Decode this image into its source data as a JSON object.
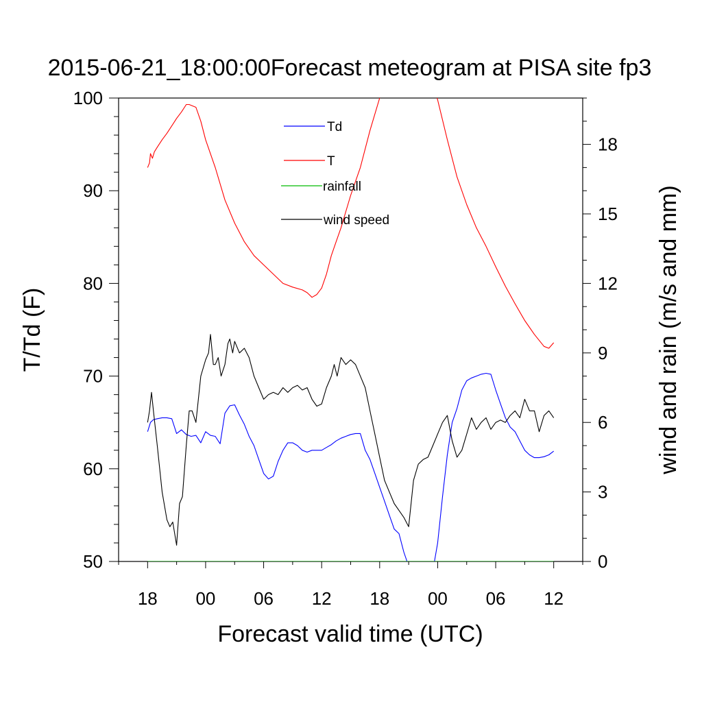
{
  "chart_data": {
    "type": "line",
    "title": "2015-06-21_18:00:00Forecast meteogram at PISA site fp3",
    "xlabel": "Forecast valid time (UTC)",
    "ylabel": "T/Td (F)",
    "ylabel_right": "wind and rain (m/s and mm)",
    "x_units": "hours since 2015-06-21 12:00 UTC",
    "xlim": [
      -3,
      45
    ],
    "ylim": [
      50,
      100
    ],
    "ylim_right": [
      0,
      20
    ],
    "x_ticks": [
      {
        "x": 0,
        "label": "18"
      },
      {
        "x": 6,
        "label": "00"
      },
      {
        "x": 12,
        "label": "06"
      },
      {
        "x": 18,
        "label": "12"
      },
      {
        "x": 24,
        "label": "18"
      },
      {
        "x": 30,
        "label": "00"
      },
      {
        "x": 36,
        "label": "06"
      },
      {
        "x": 42,
        "label": "12"
      }
    ],
    "y_ticks_left": [
      "100",
      "90",
      "80",
      "70",
      "60",
      "50"
    ],
    "y_ticks_right": [
      "18",
      "15",
      "12",
      "9",
      "6",
      "3",
      "0"
    ],
    "grid": false,
    "legend": "top-center",
    "series": [
      {
        "name": "Td",
        "axis": "left",
        "color": "#0000ff",
        "x": [
          0,
          0.3,
          0.6,
          1.0,
          1.5,
          2.0,
          2.5,
          3.0,
          3.5,
          4.0,
          4.5,
          5.0,
          5.5,
          6.0,
          6.5,
          7.0,
          7.5,
          8.0,
          8.5,
          9.0,
          9.5,
          10.0,
          10.5,
          11.0,
          11.5,
          12.0,
          12.5,
          13.0,
          13.5,
          14.0,
          14.5,
          15.0,
          15.5,
          16.0,
          16.5,
          17.0,
          17.5,
          18.0,
          18.5,
          19.0,
          19.5,
          20.0,
          20.5,
          21.0,
          21.5,
          22.0,
          22.5,
          23.0,
          23.5,
          24.0,
          24.5,
          25.0,
          25.5,
          26.0,
          26.5,
          27.0,
          27.5,
          27.8,
          29.5,
          30.0,
          30.5,
          31.0,
          31.5,
          32.0,
          32.5,
          33.0,
          33.5,
          34.0,
          34.5,
          35.0,
          35.5,
          36.0,
          36.5,
          37.0,
          37.5,
          38.0,
          38.5,
          39.0,
          39.5,
          40.0,
          40.5,
          41.0,
          41.5,
          42.0
        ],
        "y": [
          64.0,
          65.0,
          65.3,
          65.4,
          65.5,
          65.5,
          65.4,
          63.8,
          64.2,
          63.7,
          63.5,
          63.6,
          62.8,
          64.0,
          63.6,
          63.5,
          62.7,
          66.0,
          66.8,
          66.9,
          65.8,
          64.8,
          63.5,
          62.5,
          61.0,
          59.5,
          58.9,
          59.2,
          60.8,
          62.0,
          62.8,
          62.8,
          62.5,
          62.0,
          61.8,
          62.0,
          62.0,
          62.0,
          62.3,
          62.6,
          63.0,
          63.3,
          63.5,
          63.7,
          63.8,
          63.8,
          62.0,
          61.0,
          59.5,
          58.0,
          56.5,
          55.0,
          53.5,
          53.0,
          51.0,
          49.5,
          49.3,
          49.0,
          49.0,
          52.0,
          57.0,
          61.5,
          65.0,
          66.5,
          68.5,
          69.5,
          69.8,
          70.0,
          70.2,
          70.3,
          70.2,
          68.5,
          67.0,
          65.5,
          64.5,
          64.0,
          63.0,
          62.0,
          61.5,
          61.2,
          61.2,
          61.3,
          61.5,
          61.9
        ]
      },
      {
        "name": "T",
        "axis": "left",
        "color": "#ff0000",
        "x": [
          0,
          0.2,
          0.3,
          0.5,
          0.7,
          1.0,
          1.5,
          2.0,
          2.5,
          3.0,
          3.5,
          4.0,
          4.3,
          5.0,
          5.5,
          6.0,
          7.0,
          8.0,
          9.0,
          10.0,
          11.0,
          12.0,
          13.0,
          14.0,
          15.0,
          16.0,
          16.5,
          17.0,
          17.5,
          18.0,
          18.5,
          19.0,
          19.5,
          20.0,
          21.0,
          22.0,
          23.0,
          24.0,
          24.3,
          24.6,
          29.8,
          30.0,
          31.0,
          32.0,
          33.0,
          34.0,
          35.0,
          36.0,
          37.0,
          38.0,
          39.0,
          40.0,
          41.0,
          41.5,
          42.0
        ],
        "y": [
          92.5,
          93.0,
          94.0,
          93.5,
          94.2,
          94.7,
          95.5,
          96.2,
          97.0,
          97.8,
          98.5,
          99.3,
          99.3,
          99.0,
          97.5,
          95.5,
          92.5,
          89.0,
          86.5,
          84.5,
          83.0,
          82.0,
          81.0,
          80.0,
          79.6,
          79.3,
          79.0,
          78.5,
          78.8,
          79.5,
          81.0,
          83.0,
          84.5,
          86.0,
          89.5,
          92.5,
          96.5,
          100.0,
          100.2,
          100.4,
          100.4,
          99.8,
          95.5,
          91.5,
          88.5,
          86.0,
          84.0,
          81.8,
          79.7,
          77.8,
          76.0,
          74.5,
          73.2,
          73.0,
          73.6
        ]
      },
      {
        "name": "rainfall",
        "axis": "right",
        "color": "#00bb00",
        "x": [
          0,
          42
        ],
        "y": [
          0,
          0
        ]
      },
      {
        "name": "wind speed",
        "axis": "right",
        "color": "#000000",
        "x": [
          0,
          0.2,
          0.4,
          0.6,
          1.0,
          1.5,
          2.0,
          2.3,
          2.6,
          3.0,
          3.3,
          3.6,
          4.0,
          4.3,
          4.6,
          5.0,
          5.5,
          6.0,
          6.3,
          6.5,
          6.8,
          7.0,
          7.3,
          7.6,
          8.0,
          8.3,
          8.5,
          8.8,
          9.0,
          9.5,
          10.0,
          10.5,
          11.0,
          11.5,
          12.0,
          12.5,
          13.0,
          13.5,
          14.0,
          14.5,
          15.0,
          15.5,
          16.0,
          16.5,
          17.0,
          17.5,
          18.0,
          18.5,
          19.0,
          19.3,
          19.6,
          20.0,
          20.5,
          21.0,
          21.5,
          22.0,
          22.5,
          23.0,
          23.5,
          24.0,
          24.5,
          25.0,
          25.5,
          26.0,
          26.5,
          27.0,
          27.5,
          28.0,
          28.5,
          29.0,
          29.5,
          30.0,
          30.5,
          31.0,
          31.5,
          32.0,
          32.5,
          33.0,
          33.5,
          34.0,
          34.5,
          35.0,
          35.5,
          36.0,
          36.5,
          37.0,
          37.5,
          38.0,
          38.5,
          39.0,
          39.5,
          40.0,
          40.5,
          41.0,
          41.5,
          42.0
        ],
        "y": [
          6.0,
          6.5,
          7.3,
          6.5,
          5.0,
          3.0,
          1.8,
          1.5,
          1.7,
          0.7,
          2.5,
          2.8,
          5.0,
          6.5,
          6.5,
          6.0,
          8.0,
          8.7,
          9.0,
          9.8,
          8.5,
          8.5,
          8.8,
          8.0,
          8.5,
          9.4,
          9.6,
          9.0,
          9.5,
          9.0,
          9.2,
          8.8,
          8.0,
          7.5,
          7.0,
          7.2,
          7.3,
          7.2,
          7.5,
          7.3,
          7.5,
          7.6,
          7.4,
          7.5,
          7.0,
          6.7,
          6.8,
          7.5,
          8.0,
          8.5,
          8.0,
          8.8,
          8.5,
          8.7,
          8.5,
          8.0,
          7.5,
          6.5,
          5.5,
          4.5,
          3.5,
          3.0,
          2.5,
          2.2,
          1.9,
          1.5,
          3.5,
          4.2,
          4.4,
          4.5,
          5.0,
          5.5,
          6.0,
          6.3,
          5.2,
          4.5,
          4.8,
          5.5,
          6.2,
          5.7,
          6.0,
          6.2,
          5.7,
          6.0,
          6.1,
          6.0,
          6.3,
          6.5,
          6.2,
          7.0,
          6.5,
          6.5,
          5.6,
          6.3,
          6.5,
          6.2
        ]
      }
    ]
  }
}
